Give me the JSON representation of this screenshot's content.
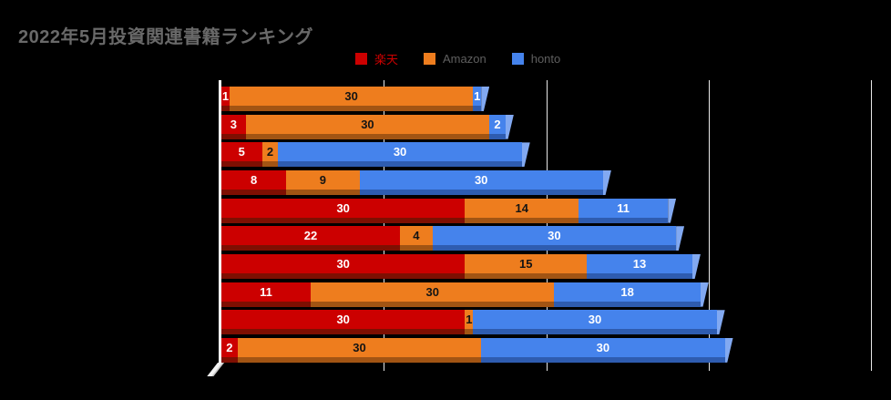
{
  "page": {
    "background": "#000000"
  },
  "title": {
    "text": "2022年5月投資関連書籍ランキング",
    "color": "#696969"
  },
  "legend": {
    "items": [
      {
        "key": "rakuten",
        "label": "楽天",
        "swatch": "#CC0000",
        "label_color": "#CC0000"
      },
      {
        "key": "amazon",
        "label": "Amazon",
        "swatch": "#EE7D1E",
        "label_color": "#5f5f5f"
      },
      {
        "key": "honto",
        "label": "honto",
        "swatch": "#4583EC",
        "label_color": "#5f5f5f"
      }
    ]
  },
  "chart_data": {
    "type": "bar",
    "orientation": "horizontal",
    "stacked": true,
    "effect_3d": true,
    "title": "2022年5月投資関連書籍ランキング",
    "legend_position": "top",
    "bar_value_labels": true,
    "categories_visible": false,
    "x_axis": {
      "min": 0,
      "max": 80,
      "gridlines": [
        20,
        40,
        60,
        80
      ],
      "tick_labels_visible": false,
      "grid_color": "#e9e9e9",
      "axis_color": "#fdfdfd"
    },
    "series": [
      {
        "key": "rakuten",
        "name": "楽天",
        "color": "#CC0000",
        "shadow_color": "#7E0F02",
        "text_color": "#ffffff",
        "values": [
          1,
          3,
          5,
          8,
          30,
          22,
          30,
          11,
          30,
          2
        ]
      },
      {
        "key": "amazon",
        "name": "Amazon",
        "color": "#EE7D1E",
        "shadow_color": "#A25413",
        "text_color": "#141414",
        "values": [
          30,
          30,
          2,
          9,
          14,
          4,
          15,
          30,
          1,
          30
        ]
      },
      {
        "key": "honto",
        "name": "honto",
        "color": "#4583EC",
        "shadow_color": "#2E5CB0",
        "end_cap_color": "#82A9F1",
        "text_color": "#ffffff",
        "values": [
          1,
          2,
          30,
          30,
          11,
          30,
          13,
          18,
          30,
          30
        ]
      }
    ],
    "row_totals": [
      32,
      35,
      37,
      47,
      55,
      56,
      58,
      59,
      61,
      62
    ]
  }
}
